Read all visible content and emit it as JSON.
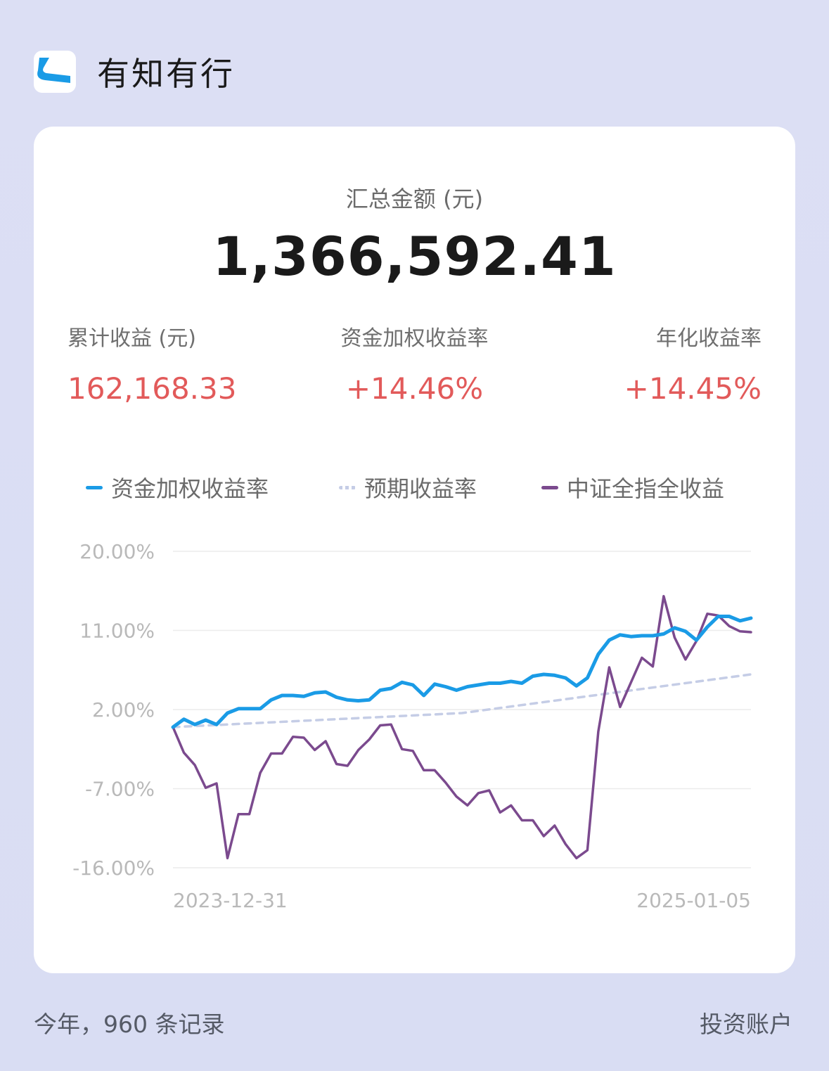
{
  "app": {
    "title": "有知有行"
  },
  "summary": {
    "total_label": "汇总金额 (元)",
    "total_value": "1,366,592.41",
    "stats": [
      {
        "label": "累计收益 (元)",
        "value": "162,168.33"
      },
      {
        "label": "资金加权收益率",
        "value": "+14.46%"
      },
      {
        "label": "年化收益率",
        "value": "+14.45%"
      }
    ]
  },
  "colors": {
    "positive": "#e25a5a",
    "series_weighted": "#1a9be6",
    "series_expected": "#c5cde6",
    "series_index": "#7b4a8e"
  },
  "footer": {
    "left": "今年，960 条记录",
    "right": "投资账户"
  },
  "chart_data": {
    "type": "line",
    "y_ticks": [
      "20.00%",
      "11.00%",
      "2.00%",
      "-7.00%",
      "-16.00%"
    ],
    "ylim": [
      -16,
      20
    ],
    "x_tick_labels": [
      "2023-12-31",
      "2025-01-05"
    ],
    "grid": true,
    "legend_position": "top",
    "series": [
      {
        "name": "资金加权收益率",
        "values": [
          0.0,
          0.9,
          0.3,
          0.8,
          0.3,
          1.6,
          2.1,
          2.1,
          2.1,
          3.1,
          3.6,
          3.6,
          3.5,
          3.9,
          4.0,
          3.4,
          3.1,
          3.0,
          3.1,
          4.2,
          4.4,
          5.1,
          4.8,
          3.6,
          4.9,
          4.6,
          4.2,
          4.6,
          4.8,
          5.0,
          5.0,
          5.2,
          5.0,
          5.8,
          6.0,
          5.9,
          5.6,
          4.7,
          5.6,
          8.3,
          9.9,
          10.5,
          10.3,
          10.4,
          10.4,
          10.6,
          11.3,
          10.9,
          9.9,
          11.4,
          12.6,
          12.6,
          12.1,
          12.4
        ],
        "style": "solid"
      },
      {
        "name": "预期收益率",
        "values": [
          0.0,
          1.6,
          6.0
        ],
        "style": "dashed"
      },
      {
        "name": "中证全指全收益",
        "values": [
          0.0,
          -2.9,
          -4.3,
          -6.9,
          -6.4,
          -14.9,
          -9.9,
          -9.9,
          -5.2,
          -3.0,
          -3.0,
          -1.1,
          -1.2,
          -2.6,
          -1.6,
          -4.2,
          -4.4,
          -2.6,
          -1.4,
          0.2,
          0.3,
          -2.5,
          -2.7,
          -4.9,
          -4.9,
          -6.3,
          -7.9,
          -8.9,
          -7.5,
          -7.2,
          -9.7,
          -8.9,
          -10.6,
          -10.6,
          -12.4,
          -11.2,
          -13.3,
          -14.9,
          -14.0,
          -0.5,
          6.8,
          2.3,
          5.1,
          7.9,
          6.9,
          14.9,
          10.2,
          7.7,
          9.8,
          12.9,
          12.7,
          11.5,
          10.9,
          10.8
        ],
        "style": "solid"
      }
    ]
  }
}
